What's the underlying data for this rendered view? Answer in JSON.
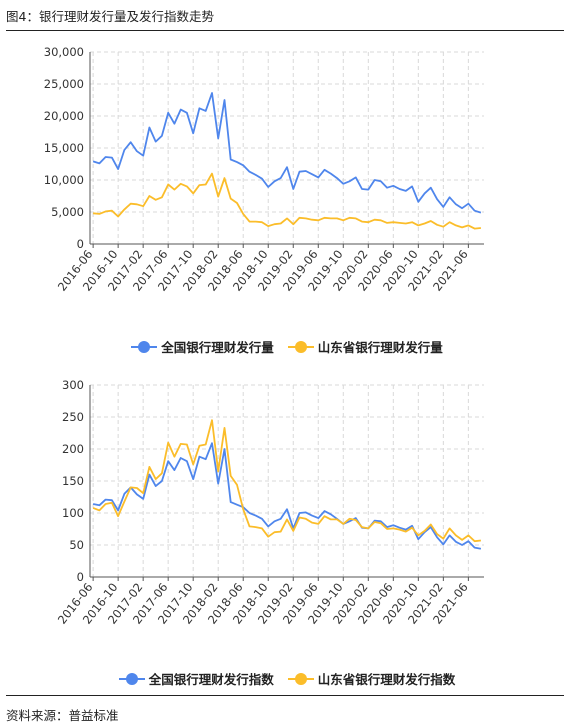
{
  "figure": {
    "title": "图4：银行理财发行量及发行指数走势",
    "source": "资料来源：普益标准"
  },
  "colors": {
    "national": "#4f86ec",
    "shandong": "#fbbd2a"
  },
  "chart_data": [
    {
      "type": "line",
      "x_labels": [
        "2016-06",
        "2016-10",
        "2017-02",
        "2017-06",
        "2017-10",
        "2018-02",
        "2018-06",
        "2018-10",
        "2019-02",
        "2019-06",
        "2019-10",
        "2020-02",
        "2020-06",
        "2020-10",
        "2021-02",
        "2021-06"
      ],
      "ylim": [
        0,
        30000
      ],
      "yticks": [
        "0",
        "5,000",
        "10,000",
        "15,000",
        "20,000",
        "25,000",
        "30,000"
      ],
      "grid": true,
      "legend_position": "bottom",
      "series": [
        {
          "name": "全国银行理财发行量",
          "values": [
            12900,
            12600,
            13600,
            13500,
            11700,
            14700,
            15900,
            14500,
            13800,
            18200,
            16000,
            16900,
            20500,
            18800,
            21000,
            20500,
            17300,
            21200,
            20800,
            23600,
            16500,
            22500,
            13200,
            12800,
            12300,
            11300,
            10800,
            10200,
            8900,
            9800,
            10300,
            12000,
            8600,
            11300,
            11400,
            10900,
            10400,
            11600,
            11000,
            10300,
            9400,
            9800,
            10400,
            8600,
            8500,
            10000,
            9800,
            8800,
            9100,
            8600,
            8300,
            9000,
            6600,
            7900,
            8800,
            7000,
            5800,
            7300,
            6200,
            5600,
            6300,
            5200,
            4900
          ]
        },
        {
          "name": "山东省银行理财发行量",
          "values": [
            4800,
            4700,
            5100,
            5200,
            4300,
            5400,
            6300,
            6200,
            5900,
            7500,
            6900,
            7300,
            9300,
            8500,
            9400,
            9000,
            7900,
            9200,
            9300,
            11000,
            7400,
            10300,
            7100,
            6400,
            4700,
            3500,
            3500,
            3400,
            2800,
            3100,
            3200,
            4000,
            3100,
            4100,
            4000,
            3800,
            3700,
            4100,
            4000,
            4000,
            3700,
            4100,
            4000,
            3500,
            3400,
            3800,
            3700,
            3300,
            3400,
            3300,
            3200,
            3400,
            2900,
            3200,
            3600,
            3000,
            2700,
            3400,
            2900,
            2600,
            2900,
            2400,
            2500
          ]
        }
      ]
    },
    {
      "type": "line",
      "x_labels": [
        "2016-06",
        "2016-10",
        "2017-02",
        "2017-06",
        "2017-10",
        "2018-02",
        "2018-06",
        "2018-10",
        "2019-02",
        "2019-06",
        "2019-10",
        "2020-02",
        "2020-06",
        "2020-10",
        "2021-02",
        "2021-06"
      ],
      "ylim": [
        0,
        300
      ],
      "yticks": [
        "0",
        "50",
        "100",
        "150",
        "200",
        "250",
        "300"
      ],
      "grid": true,
      "legend_position": "bottom",
      "series": [
        {
          "name": "全国银行理财发行指数",
          "values": [
            114,
            112,
            121,
            120,
            104,
            130,
            140,
            129,
            122,
            160,
            142,
            150,
            181,
            167,
            186,
            181,
            153,
            188,
            184,
            209,
            146,
            200,
            117,
            113,
            109,
            100,
            96,
            91,
            79,
            87,
            91,
            106,
            76,
            100,
            101,
            96,
            92,
            103,
            98,
            91,
            83,
            87,
            92,
            77,
            76,
            88,
            87,
            78,
            81,
            77,
            74,
            80,
            59,
            70,
            78,
            62,
            51,
            65,
            55,
            50,
            56,
            46,
            44
          ]
        },
        {
          "name": "山东省银行理财发行指数",
          "values": [
            108,
            104,
            114,
            116,
            95,
            118,
            140,
            139,
            131,
            172,
            153,
            162,
            210,
            188,
            208,
            207,
            176,
            205,
            207,
            245,
            165,
            233,
            158,
            144,
            106,
            79,
            78,
            76,
            63,
            70,
            71,
            90,
            72,
            93,
            91,
            85,
            83,
            95,
            90,
            90,
            83,
            91,
            89,
            78,
            76,
            86,
            84,
            75,
            76,
            74,
            71,
            77,
            65,
            72,
            82,
            67,
            60,
            76,
            65,
            58,
            65,
            56,
            57
          ]
        }
      ]
    }
  ],
  "legends": [
    {
      "national": "全国银行理财发行量",
      "shandong": "山东省银行理财发行量"
    },
    {
      "national": "全国银行理财发行指数",
      "shandong": "山东省银行理财发行指数"
    }
  ]
}
